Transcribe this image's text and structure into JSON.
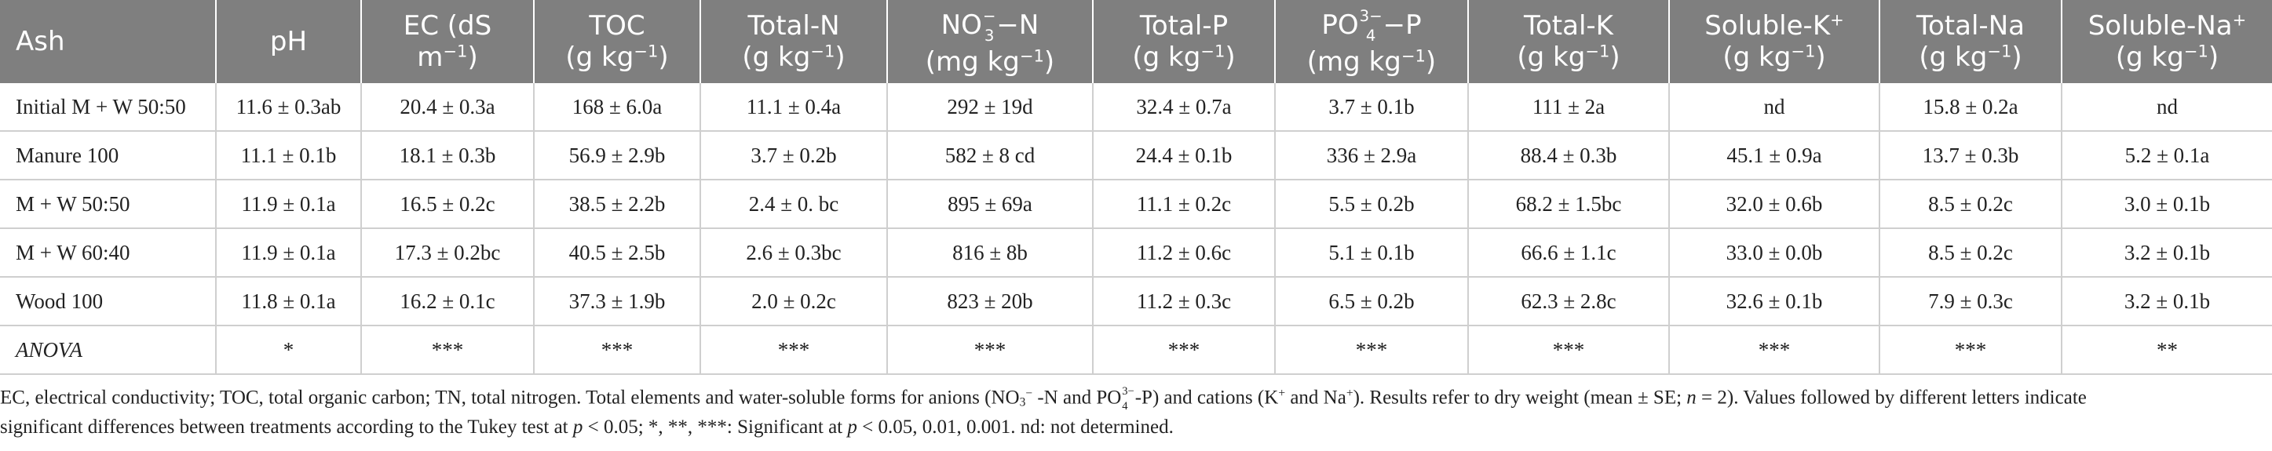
{
  "table": {
    "headers": [
      {
        "line1": "Ash",
        "line2": ""
      },
      {
        "line1": "pH",
        "line2": ""
      },
      {
        "line1": "EC (dS",
        "line2": "m",
        "line2_sup": "−1",
        "line2_after": ")"
      },
      {
        "line1": "TOC",
        "line2": "(g kg",
        "line2_sup": "−1",
        "line2_after": ")"
      },
      {
        "line1": "Total-N",
        "line2": "(g kg",
        "line2_sup": "−1",
        "line2_after": ")"
      },
      {
        "line1a": "NO",
        "line1_sub": "3",
        "line1_sup": "−",
        "line1b": "N",
        "line2": "(mg kg",
        "line2_sup": "−1",
        "line2_after": ")"
      },
      {
        "line1": "Total-P",
        "line2": "(g kg",
        "line2_sup": "−1",
        "line2_after": ")"
      },
      {
        "line1a": "PO",
        "line1_sub": "4",
        "line1_sup": "3−",
        "line1b": "P",
        "line2": "(mg kg",
        "line2_sup": "−1",
        "line2_after": ")"
      },
      {
        "line1": "Total-K",
        "line2": "(g kg",
        "line2_sup": "−1",
        "line2_after": ")"
      },
      {
        "line1": "Soluble-K",
        "line1_sup": "+",
        "line2": "(g kg",
        "line2_sup": "−1",
        "line2_after": ")"
      },
      {
        "line1": "Total-Na",
        "line2": "(g kg",
        "line2_sup": "−1",
        "line2_after": ")"
      },
      {
        "line1": "Soluble-Na",
        "line1_sup": "+",
        "line2": "(g kg",
        "line2_sup": "−1",
        "line2_after": ")"
      }
    ],
    "rows": [
      [
        "Initial M + W 50:50",
        "11.6 ± 0.3ab",
        "20.4 ± 0.3a",
        "168 ± 6.0a",
        "11.1 ± 0.4a",
        "292 ± 19d",
        "32.4 ± 0.7a",
        "3.7 ± 0.1b",
        "111 ± 2a",
        "nd",
        "15.8 ± 0.2a",
        "nd"
      ],
      [
        "Manure 100",
        "11.1 ± 0.1b",
        "18.1 ± 0.3b",
        "56.9 ± 2.9b",
        "3.7 ± 0.2b",
        "582 ± 8 cd",
        "24.4 ± 0.1b",
        "336 ± 2.9a",
        "88.4 ± 0.3b",
        "45.1 ± 0.9a",
        "13.7 ± 0.3b",
        "5.2 ± 0.1a"
      ],
      [
        "M + W 50:50",
        "11.9 ± 0.1a",
        "16.5 ± 0.2c",
        "38.5 ± 2.2b",
        "2.4 ± 0. bc",
        "895 ± 69a",
        "11.1 ± 0.2c",
        "5.5 ± 0.2b",
        "68.2 ± 1.5bc",
        "32.0 ± 0.6b",
        "8.5 ± 0.2c",
        "3.0 ± 0.1b"
      ],
      [
        "M + W 60:40",
        "11.9 ± 0.1a",
        "17.3 ± 0.2bc",
        "40.5 ± 2.5b",
        "2.6 ± 0.3bc",
        "816 ± 8b",
        "11.2 ± 0.6c",
        "5.1 ± 0.1b",
        "66.6 ± 1.1c",
        "33.0 ± 0.0b",
        "8.5 ± 0.2c",
        "3.2 ± 0.1b"
      ],
      [
        "Wood 100",
        "11.8 ± 0.1a",
        "16.2 ± 0.1c",
        "37.3 ± 1.9b",
        "2.0 ± 0.2c",
        "823 ± 20b",
        "11.2 ± 0.3c",
        "6.5 ± 0.2b",
        "62.3 ± 2.8c",
        "32.6 ± 0.1b",
        "7.9 ± 0.3c",
        "3.2 ± 0.1b"
      ],
      [
        "ANOVA",
        "*",
        "***",
        "***",
        "***",
        "***",
        "***",
        "***",
        "***",
        "***",
        "***",
        "**"
      ]
    ]
  },
  "footnote": {
    "p1": "EC, electrical conductivity; TOC, total organic carbon; TN, total nitrogen. Total elements and water-soluble forms for anions (NO",
    "p1_sub": "3",
    "p1_sup": "−",
    "p2": " -N and PO",
    "p2_sub": "4",
    "p2_sup": "3−",
    "p3": "-P) and cations (K",
    "p3_sup": "+",
    "p4": " and Na",
    "p4_sup": "+",
    "p5": "). Results refer to dry weight (mean ± SE; ",
    "n_var": "n",
    "p6": " = 2). Values followed by different letters indicate",
    "p7": "significant differences between treatments according to the Tukey test at ",
    "p_var1": "p",
    "p8": " < 0.05; *, **, ***: Significant at ",
    "p_var2": "p",
    "p9": " < 0.05, 0.01, 0.001. nd: not determined."
  }
}
